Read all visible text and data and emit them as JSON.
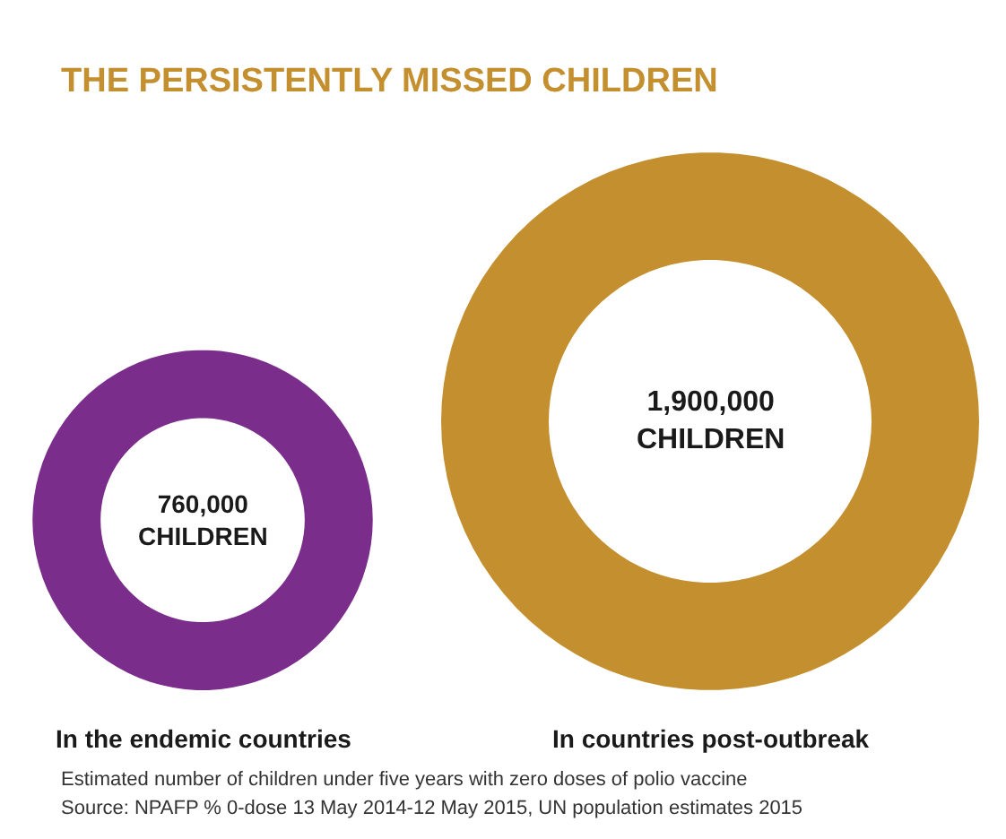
{
  "chart_data": {
    "type": "other",
    "title": "THE PERSISTENTLY MISSED CHILDREN",
    "categories": [
      "In the endemic countries",
      "In countries post-outbreak"
    ],
    "values": [
      760000,
      1900000
    ],
    "value_labels": [
      "760,000\nCHILDREN",
      "1,900,000\nCHILDREN"
    ],
    "colors": [
      "#7b2d8b",
      "#c48f2e"
    ],
    "annotations": [
      "Estimated number of children under five years with zero doses of polio vaccine",
      "Source: NPAFP % 0-dose 13 May 2014-12 May 2015, UN population estimates 2015"
    ]
  }
}
